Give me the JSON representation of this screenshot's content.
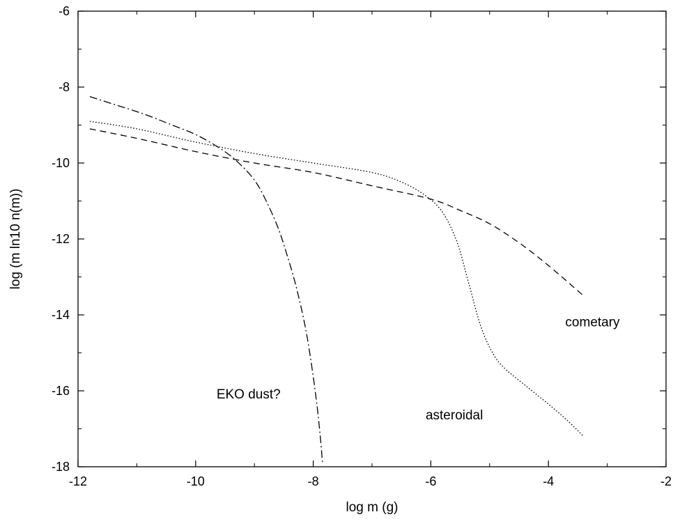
{
  "chart_data": {
    "type": "line",
    "title": "",
    "xlabel": "log m (g)",
    "ylabel": "log (m ln10 n(m))",
    "xlim": [
      -12,
      -2
    ],
    "ylim": [
      -18,
      -6
    ],
    "grid": false,
    "legend": "none",
    "x_ticks": [
      -12,
      -10,
      -8,
      -6,
      -4,
      -2
    ],
    "x_tick_labels": [
      "-12",
      "-10",
      "-8",
      "-6",
      "-4",
      "-2"
    ],
    "y_ticks": [
      -18,
      -16,
      -14,
      -12,
      -10,
      -8,
      -6
    ],
    "y_tick_labels": [
      "-18",
      "-16",
      "-14",
      "-12",
      "-10",
      "-8",
      "-6"
    ],
    "series": [
      {
        "key": "eko",
        "style": "dash-dot",
        "color": "#000000",
        "points": [
          [
            -11.8,
            -8.25
          ],
          [
            -11.4,
            -8.45
          ],
          [
            -10.9,
            -8.7
          ],
          [
            -10.4,
            -9.0
          ],
          [
            -10.0,
            -9.25
          ],
          [
            -9.6,
            -9.6
          ],
          [
            -9.3,
            -9.95
          ],
          [
            -9.0,
            -10.45
          ],
          [
            -8.8,
            -11.0
          ],
          [
            -8.6,
            -11.7
          ],
          [
            -8.45,
            -12.4
          ],
          [
            -8.3,
            -13.2
          ],
          [
            -8.15,
            -14.2
          ],
          [
            -8.05,
            -15.1
          ],
          [
            -7.95,
            -16.2
          ],
          [
            -7.88,
            -17.2
          ],
          [
            -7.84,
            -17.95
          ]
        ]
      },
      {
        "key": "asteroidal",
        "style": "dotted",
        "color": "#000000",
        "points": [
          [
            -11.8,
            -8.9
          ],
          [
            -11.0,
            -9.1
          ],
          [
            -10.0,
            -9.45
          ],
          [
            -9.0,
            -9.75
          ],
          [
            -8.0,
            -10.0
          ],
          [
            -7.0,
            -10.25
          ],
          [
            -6.5,
            -10.5
          ],
          [
            -6.1,
            -10.85
          ],
          [
            -5.8,
            -11.3
          ],
          [
            -5.55,
            -12.1
          ],
          [
            -5.35,
            -13.2
          ],
          [
            -5.15,
            -14.3
          ],
          [
            -4.95,
            -15.0
          ],
          [
            -4.75,
            -15.4
          ],
          [
            -4.4,
            -15.85
          ],
          [
            -4.0,
            -16.35
          ],
          [
            -3.7,
            -16.75
          ],
          [
            -3.4,
            -17.2
          ]
        ]
      },
      {
        "key": "cometary",
        "style": "dashed",
        "color": "#000000",
        "points": [
          [
            -11.8,
            -9.1
          ],
          [
            -11.0,
            -9.35
          ],
          [
            -10.0,
            -9.7
          ],
          [
            -9.0,
            -10.0
          ],
          [
            -8.0,
            -10.25
          ],
          [
            -7.0,
            -10.6
          ],
          [
            -6.0,
            -10.95
          ],
          [
            -5.5,
            -11.25
          ],
          [
            -5.0,
            -11.6
          ],
          [
            -4.5,
            -12.1
          ],
          [
            -4.0,
            -12.7
          ],
          [
            -3.4,
            -13.5
          ]
        ]
      }
    ],
    "annotations": [
      {
        "key": "cometary",
        "text": "cometary",
        "x": -3.25,
        "y": -14.3
      },
      {
        "key": "asteroidal",
        "text": "asteroidal",
        "x": -5.6,
        "y": -16.75
      },
      {
        "key": "eko",
        "text": "EKO dust?",
        "x": -9.1,
        "y": -16.2
      }
    ]
  }
}
